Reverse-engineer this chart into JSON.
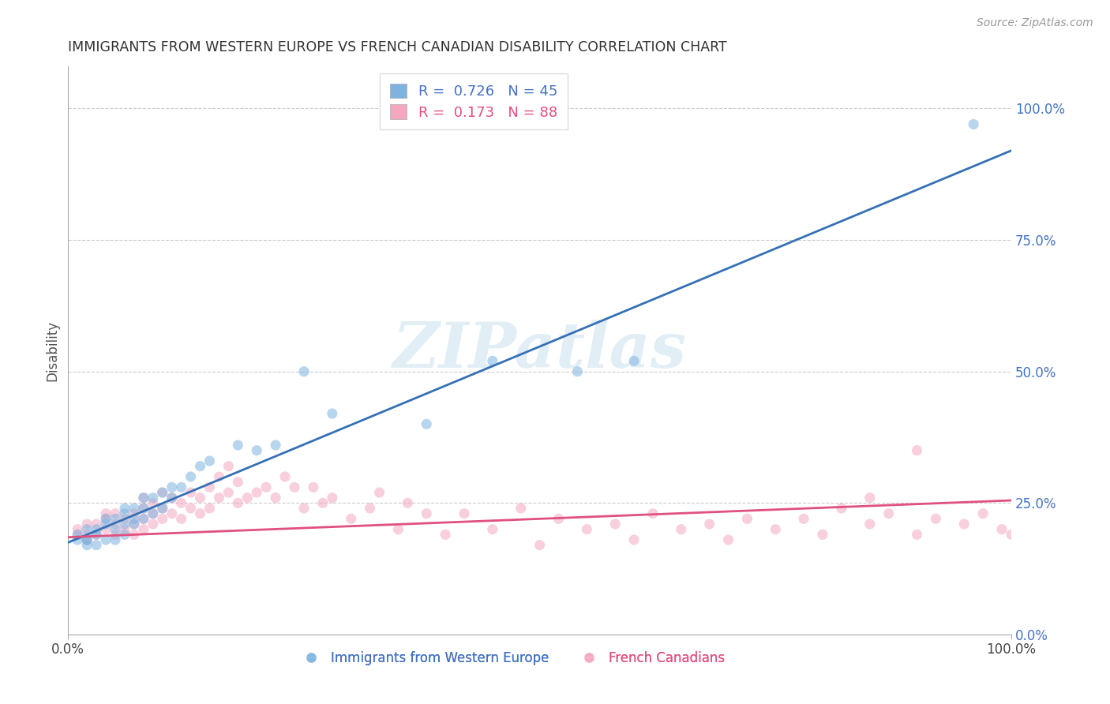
{
  "title": "IMMIGRANTS FROM WESTERN EUROPE VS FRENCH CANADIAN DISABILITY CORRELATION CHART",
  "source_text": "Source: ZipAtlas.com",
  "ylabel": "Disability",
  "xlim": [
    0.0,
    1.0
  ],
  "ylim": [
    0.0,
    1.08
  ],
  "ytick_positions": [
    0.0,
    0.25,
    0.5,
    0.75,
    1.0
  ],
  "ytick_labels": [
    "0.0%",
    "25.0%",
    "50.0%",
    "75.0%",
    "100.0%"
  ],
  "xtick_positions": [
    0.0,
    1.0
  ],
  "xtick_labels": [
    "0.0%",
    "100.0%"
  ],
  "grid_color": "#cccccc",
  "background_color": "#ffffff",
  "blue_color": "#7eb3e0",
  "pink_color": "#f4a8c0",
  "blue_line_color": "#3570b5",
  "pink_line_color": "#e05080",
  "R_blue": 0.726,
  "N_blue": 45,
  "R_pink": 0.173,
  "N_pink": 88,
  "legend_label_blue": "Immigrants from Western Europe",
  "legend_label_pink": "French Canadians",
  "watermark_text": "ZIPatlas",
  "blue_scatter_x": [
    0.01,
    0.01,
    0.02,
    0.02,
    0.02,
    0.02,
    0.03,
    0.03,
    0.03,
    0.04,
    0.04,
    0.04,
    0.05,
    0.05,
    0.05,
    0.06,
    0.06,
    0.06,
    0.06,
    0.07,
    0.07,
    0.07,
    0.08,
    0.08,
    0.08,
    0.09,
    0.09,
    0.1,
    0.1,
    0.11,
    0.11,
    0.12,
    0.13,
    0.14,
    0.15,
    0.18,
    0.2,
    0.22,
    0.25,
    0.28,
    0.38,
    0.45,
    0.54,
    0.6,
    0.96
  ],
  "blue_scatter_y": [
    0.18,
    0.19,
    0.17,
    0.18,
    0.18,
    0.2,
    0.17,
    0.19,
    0.2,
    0.18,
    0.21,
    0.22,
    0.18,
    0.2,
    0.22,
    0.19,
    0.21,
    0.23,
    0.24,
    0.21,
    0.22,
    0.24,
    0.22,
    0.24,
    0.26,
    0.23,
    0.26,
    0.24,
    0.27,
    0.26,
    0.28,
    0.28,
    0.3,
    0.32,
    0.33,
    0.36,
    0.35,
    0.36,
    0.5,
    0.42,
    0.4,
    0.52,
    0.5,
    0.52,
    0.97
  ],
  "pink_scatter_x": [
    0.01,
    0.01,
    0.02,
    0.02,
    0.02,
    0.03,
    0.03,
    0.04,
    0.04,
    0.04,
    0.05,
    0.05,
    0.05,
    0.06,
    0.06,
    0.07,
    0.07,
    0.07,
    0.08,
    0.08,
    0.08,
    0.08,
    0.09,
    0.09,
    0.09,
    0.1,
    0.1,
    0.1,
    0.11,
    0.11,
    0.12,
    0.12,
    0.13,
    0.13,
    0.14,
    0.14,
    0.15,
    0.15,
    0.16,
    0.16,
    0.17,
    0.17,
    0.18,
    0.18,
    0.19,
    0.2,
    0.21,
    0.22,
    0.23,
    0.24,
    0.25,
    0.26,
    0.27,
    0.28,
    0.3,
    0.32,
    0.33,
    0.35,
    0.36,
    0.38,
    0.4,
    0.42,
    0.45,
    0.48,
    0.5,
    0.52,
    0.55,
    0.58,
    0.6,
    0.62,
    0.65,
    0.68,
    0.7,
    0.72,
    0.75,
    0.78,
    0.8,
    0.82,
    0.85,
    0.87,
    0.9,
    0.92,
    0.95,
    0.97,
    0.99,
    1.0,
    0.85,
    0.9
  ],
  "pink_scatter_y": [
    0.19,
    0.2,
    0.18,
    0.19,
    0.21,
    0.19,
    0.21,
    0.2,
    0.22,
    0.23,
    0.19,
    0.21,
    0.23,
    0.2,
    0.22,
    0.19,
    0.21,
    0.23,
    0.2,
    0.22,
    0.24,
    0.26,
    0.21,
    0.23,
    0.25,
    0.22,
    0.24,
    0.27,
    0.23,
    0.26,
    0.22,
    0.25,
    0.24,
    0.27,
    0.23,
    0.26,
    0.24,
    0.28,
    0.26,
    0.3,
    0.27,
    0.32,
    0.25,
    0.29,
    0.26,
    0.27,
    0.28,
    0.26,
    0.3,
    0.28,
    0.24,
    0.28,
    0.25,
    0.26,
    0.22,
    0.24,
    0.27,
    0.2,
    0.25,
    0.23,
    0.19,
    0.23,
    0.2,
    0.24,
    0.17,
    0.22,
    0.2,
    0.21,
    0.18,
    0.23,
    0.2,
    0.21,
    0.18,
    0.22,
    0.2,
    0.22,
    0.19,
    0.24,
    0.21,
    0.23,
    0.19,
    0.22,
    0.21,
    0.23,
    0.2,
    0.19,
    0.26,
    0.35
  ],
  "blue_line_x0": 0.0,
  "blue_line_y0": 0.175,
  "blue_line_x1": 1.0,
  "blue_line_y1": 0.92,
  "pink_line_x0": 0.0,
  "pink_line_y0": 0.185,
  "pink_line_x1": 1.0,
  "pink_line_y1": 0.255
}
